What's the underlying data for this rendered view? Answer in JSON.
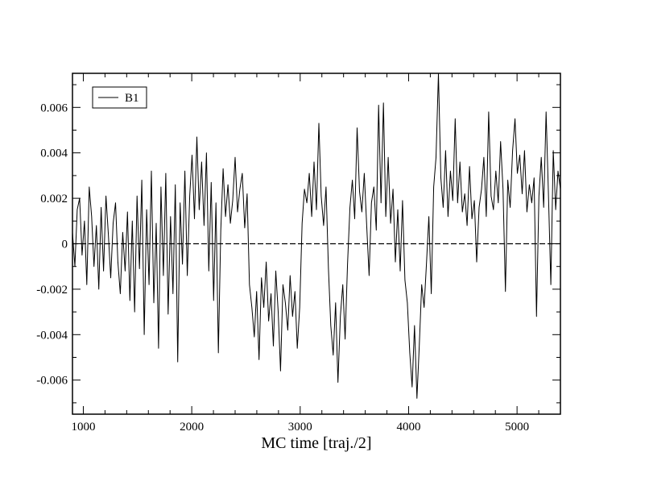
{
  "chart_data": {
    "type": "line",
    "title": "",
    "xlabel": "MC time [traj./2]",
    "ylabel": "",
    "xlim": [
      900,
      5400
    ],
    "ylim": [
      -0.0075,
      0.0075
    ],
    "x_ticks": [
      1000,
      2000,
      3000,
      4000,
      5000
    ],
    "x_tick_labels": [
      "1000",
      "2000",
      "3000",
      "4000",
      "5000"
    ],
    "y_ticks": [
      -0.006,
      -0.004,
      -0.002,
      0,
      0.002,
      0.004,
      0.006
    ],
    "y_tick_labels": [
      "-0.006",
      "-0.004",
      "-0.002",
      "0",
      "0.002",
      "0.004",
      "0.006"
    ],
    "grid": false,
    "legend": {
      "position": "top-left",
      "entries": [
        "B1"
      ]
    },
    "reference_line": {
      "y": 0,
      "style": "dashed"
    },
    "series": [
      {
        "name": "B1",
        "color": "#000000",
        "step": 4,
        "x_start": 900,
        "x_end": 5400,
        "values": [
          0.0005,
          -0.001,
          0.0015,
          0.002,
          -0.0005,
          0.001,
          -0.0018,
          0.0025,
          0.0012,
          -0.001,
          0.0008,
          -0.002,
          0.0016,
          -0.0012,
          0.0021,
          0.0004,
          -0.0015,
          0.0009,
          0.0018,
          -0.0008,
          -0.0022,
          0.0005,
          -0.0012,
          0.0014,
          -0.0025,
          0.001,
          -0.003,
          0.0021,
          -0.0011,
          0.0028,
          -0.004,
          0.0015,
          -0.0018,
          0.0032,
          -0.0026,
          0.0009,
          -0.0046,
          0.0025,
          -0.0014,
          0.0031,
          -0.0031,
          0.0012,
          -0.0022,
          0.0026,
          -0.0052,
          0.0018,
          -0.0009,
          0.0032,
          -0.0014,
          0.0021,
          0.0039,
          0.0011,
          0.0047,
          0.0015,
          0.0036,
          0.0008,
          0.004,
          -0.0012,
          0.0027,
          -0.0025,
          0.0018,
          -0.0048,
          0.0006,
          0.0033,
          0.0012,
          0.0026,
          0.0009,
          0.0019,
          0.0038,
          0.0014,
          0.0024,
          0.0031,
          0.0007,
          0.0022,
          -0.0018,
          -0.0028,
          -0.0041,
          -0.0021,
          -0.0051,
          -0.0015,
          -0.0028,
          -0.0008,
          -0.0034,
          -0.0022,
          -0.0045,
          -0.0012,
          -0.003,
          -0.0056,
          -0.0018,
          -0.0026,
          -0.0038,
          -0.0014,
          -0.0032,
          -0.0021,
          -0.0046,
          -0.0028,
          0.0009,
          0.0024,
          0.0018,
          0.0031,
          0.0012,
          0.0036,
          0.0015,
          0.0053,
          0.0021,
          0.0008,
          0.0025,
          -0.0011,
          -0.0036,
          -0.0049,
          -0.0026,
          -0.0061,
          -0.0032,
          -0.0018,
          -0.0042,
          -0.0009,
          0.0016,
          0.0028,
          0.0011,
          0.0051,
          0.0023,
          0.0014,
          0.0031,
          0.0008,
          -0.0014,
          0.0018,
          0.0025,
          0.0006,
          0.0061,
          0.0018,
          0.0062,
          0.0012,
          0.0038,
          0.0009,
          0.0024,
          -0.0008,
          0.0015,
          -0.0012,
          0.0019,
          -0.0016,
          -0.0026,
          -0.0048,
          -0.0063,
          -0.0036,
          -0.0068,
          -0.0045,
          -0.0018,
          -0.0028,
          -0.0009,
          0.0012,
          -0.0022,
          0.0025,
          0.0038,
          0.0075,
          0.0029,
          0.0016,
          0.0041,
          0.0012,
          0.0032,
          0.0019,
          0.0055,
          0.0018,
          0.0036,
          0.0014,
          0.0022,
          0.0008,
          0.0034,
          0.0011,
          0.0019,
          -0.0008,
          0.0016,
          0.0024,
          0.0038,
          0.0012,
          0.0058,
          0.0021,
          0.0015,
          0.0032,
          0.0018,
          0.0045,
          0.0024,
          -0.0021,
          0.0028,
          0.0016,
          0.0041,
          0.0055,
          0.0031,
          0.0039,
          0.0022,
          0.0041,
          0.0014,
          0.0026,
          0.0018,
          0.0029,
          -0.0032,
          0.0021,
          0.0038,
          0.0016,
          0.0058,
          0.0022,
          -0.0018,
          0.0041,
          0.0015,
          0.0032,
          0.0024
        ]
      }
    ]
  }
}
